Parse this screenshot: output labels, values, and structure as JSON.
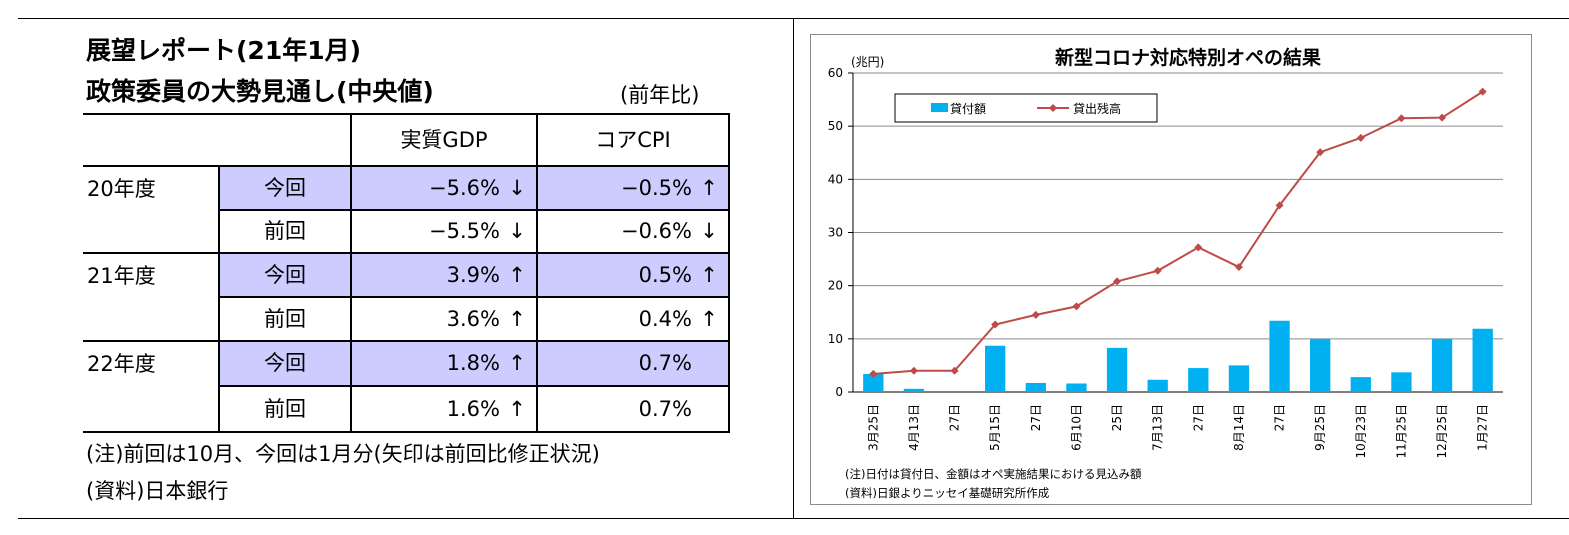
{
  "left_panel": {
    "title_line1": "展望レポート(21年1月)",
    "title_line2": "政策委員の大勢見通し(中央値)",
    "ratio_note": "(前年比)",
    "columns": [
      "実質GDP",
      "コアCPI"
    ],
    "rows": [
      {
        "year": "20年度",
        "kind": "今回",
        "gdp": "−5.6%",
        "gdp_arrow": "↓",
        "cpi": "−0.5%",
        "cpi_arrow": "↑",
        "highlight": true
      },
      {
        "year": "",
        "kind": "前回",
        "gdp": "−5.5%",
        "gdp_arrow": "↓",
        "cpi": "−0.6%",
        "cpi_arrow": "↓",
        "highlight": false
      },
      {
        "year": "21年度",
        "kind": "今回",
        "gdp": "3.9%",
        "gdp_arrow": "↑",
        "cpi": "0.5%",
        "cpi_arrow": "↑",
        "highlight": true
      },
      {
        "year": "",
        "kind": "前回",
        "gdp": "3.6%",
        "gdp_arrow": "↑",
        "cpi": "0.4%",
        "cpi_arrow": "↑",
        "highlight": false
      },
      {
        "year": "22年度",
        "kind": "今回",
        "gdp": "1.8%",
        "gdp_arrow": "↑",
        "cpi": "0.7%",
        "cpi_arrow": "",
        "highlight": true
      },
      {
        "year": "",
        "kind": "前回",
        "gdp": "1.6%",
        "gdp_arrow": "↑",
        "cpi": "0.7%",
        "cpi_arrow": "",
        "highlight": false
      }
    ],
    "note": "(注)前回は10月、今回は1月分(矢印は前回比修正状況)",
    "source": "(資料)日本銀行",
    "highlight_color": "#ccccff"
  },
  "chart_data": {
    "type": "bar",
    "title": "新型コロナ対応特別オペの結果",
    "unit_label": "(兆円)",
    "ylim": [
      0,
      60
    ],
    "yticks": [
      0,
      10,
      20,
      30,
      40,
      50,
      60
    ],
    "grid": true,
    "legend_position": "top-left",
    "categories": [
      "3月25日",
      "4月13日",
      "27日",
      "5月15日",
      "27日",
      "6月10日",
      "25日",
      "7月13日",
      "27日",
      "8月14日",
      "27日",
      "9月25日",
      "10月23日",
      "11月25日",
      "12月25日",
      "1月27日"
    ],
    "series": [
      {
        "name": "貸付額",
        "type": "bar",
        "color": "#00b0f0",
        "values": [
          3.4,
          0.6,
          0.0,
          8.7,
          1.7,
          1.6,
          8.3,
          2.3,
          4.5,
          5.0,
          13.4,
          10.0,
          2.8,
          3.7,
          10.0,
          11.9
        ]
      },
      {
        "name": "貸出残高",
        "type": "line",
        "color": "#be4b48",
        "values": [
          3.4,
          4.0,
          4.0,
          12.7,
          14.5,
          16.1,
          20.8,
          22.8,
          27.2,
          23.5,
          35.1,
          45.1,
          47.8,
          51.5,
          51.6,
          56.5
        ]
      }
    ],
    "notes": [
      "(注)日付は貸付日、金額はオペ実施結果における見込み額",
      "(資料)日銀よりニッセイ基礎研究所作成"
    ]
  }
}
